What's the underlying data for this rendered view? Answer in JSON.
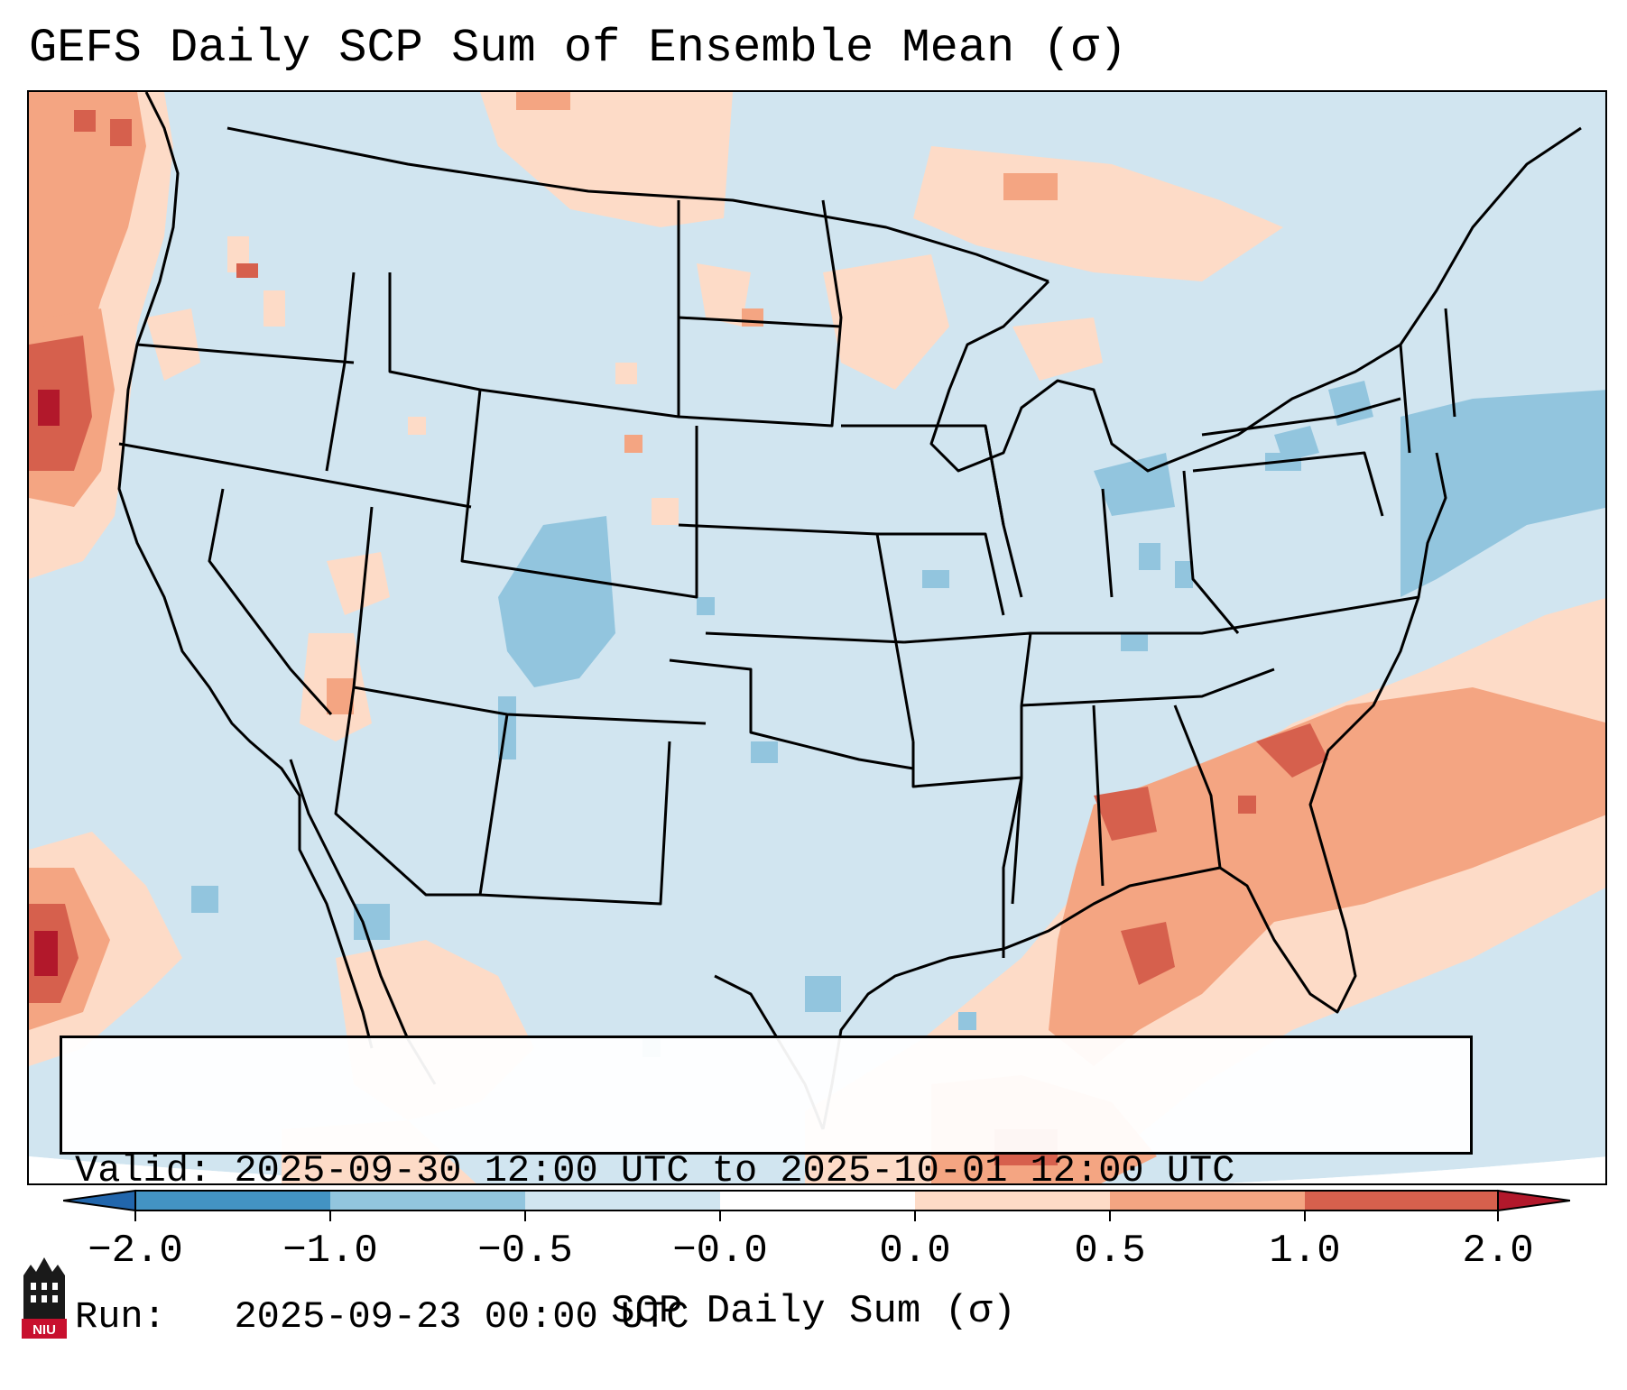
{
  "title": "GEFS Daily SCP Sum of Ensemble Mean (σ)",
  "info": {
    "valid_label": "Valid:",
    "valid_value": "2025-09-30 12:00 UTC to 2025-10-01 12:00 UTC",
    "run_label": "Run:  ",
    "run_value": "2025-09-23 00:00 UTC"
  },
  "colorbar": {
    "label": "SCP Daily Sum (σ)",
    "ticks": [
      "−2.0",
      "−1.0",
      "−0.5",
      "−0.0",
      "0.0",
      "0.5",
      "1.0",
      "2.0"
    ],
    "bin_colors": [
      "#4393c3",
      "#92c5de",
      "#d1e5f0",
      "#fddbc7",
      "#f4a582",
      "#d6604d"
    ],
    "under_color": "#2166ac",
    "over_color": "#b2182b"
  },
  "logo": {
    "text": "NIU"
  },
  "map_colors": {
    "background": "#d1e5f0",
    "light_pos": "#fddbc7",
    "mid_pos": "#f4a582",
    "strong_pos": "#d6604d",
    "max_pos": "#b2182b",
    "light_neg": "#92c5de"
  }
}
